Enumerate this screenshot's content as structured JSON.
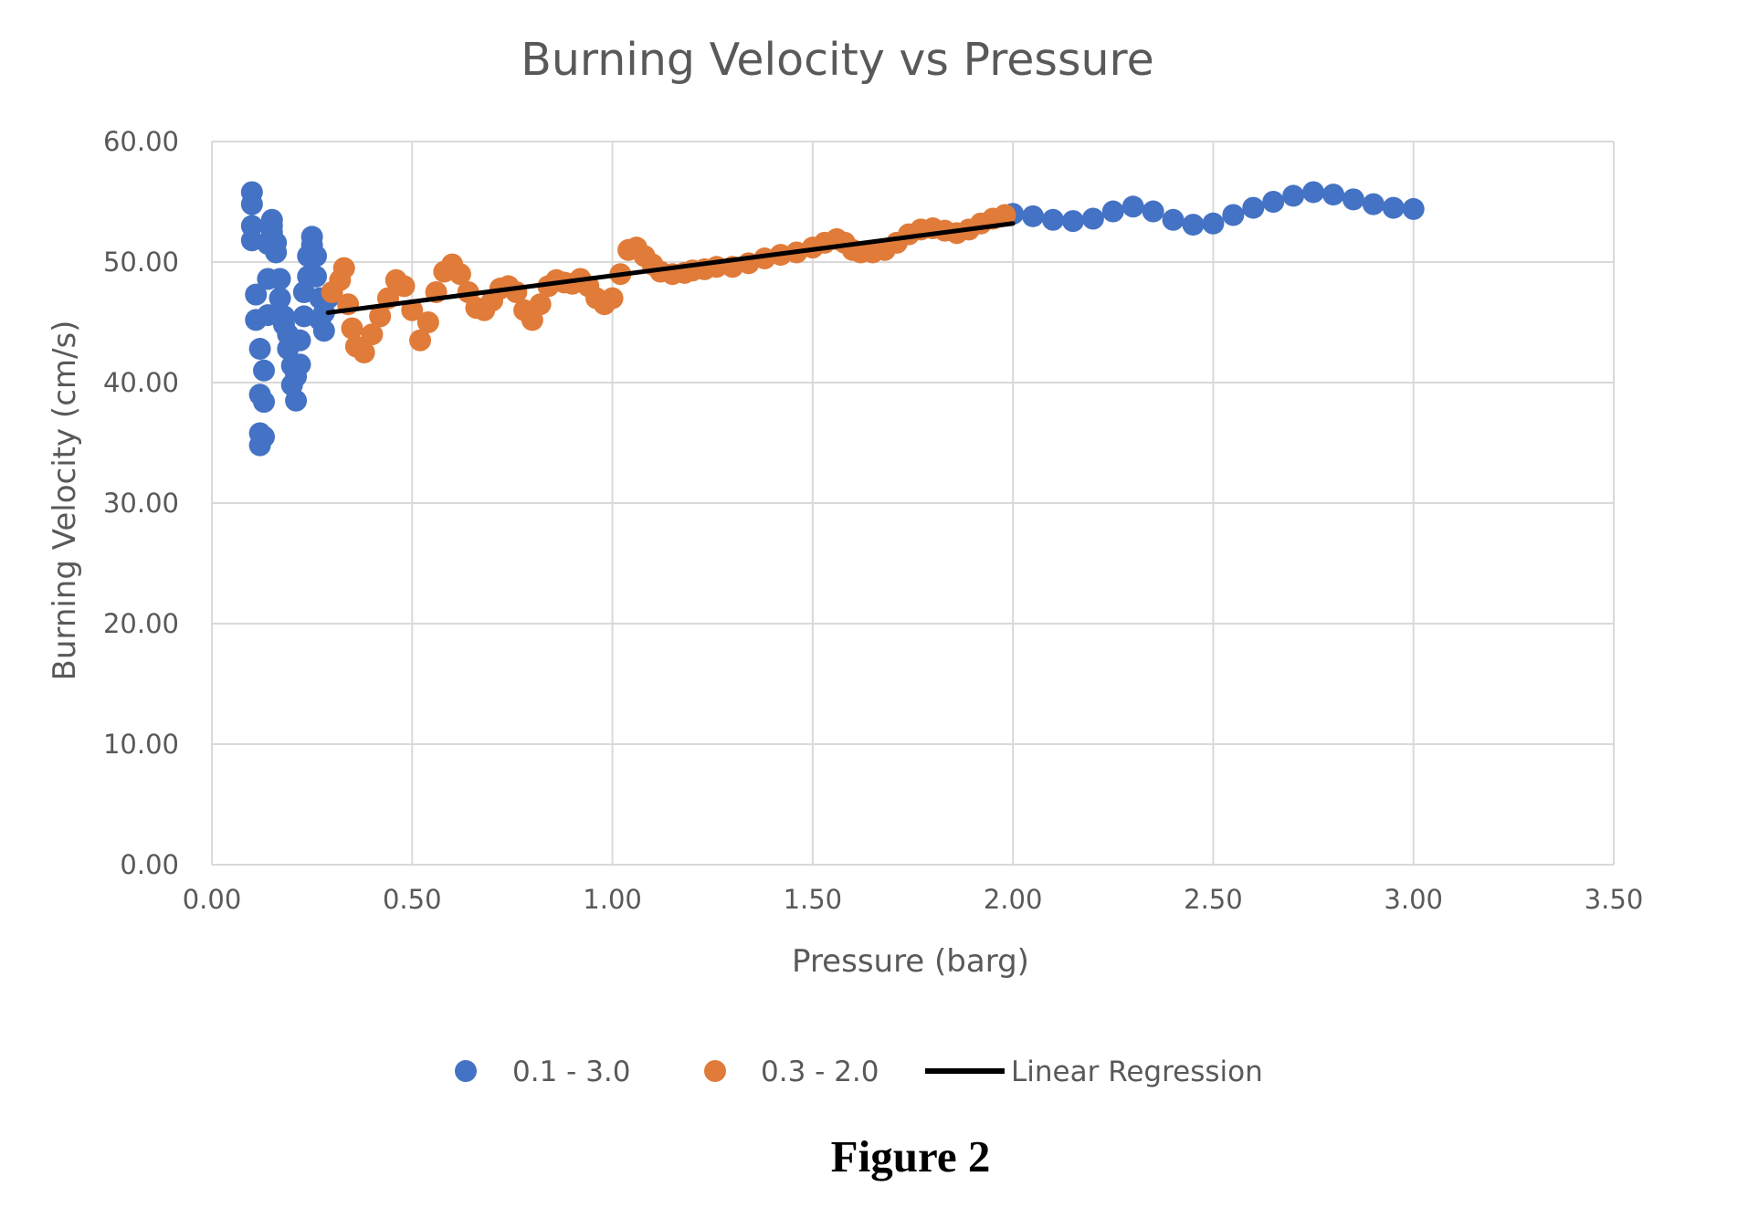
{
  "caption": "Figure 2",
  "colors": {
    "series_a": "#4472C4",
    "series_b": "#E07B39",
    "regression": "#000000",
    "gridline": "#d9d9d9",
    "text": "#595959"
  },
  "chart_data": {
    "type": "scatter",
    "title": "Burning Velocity vs Pressure",
    "xlabel": "Pressure (barg)",
    "ylabel": "Burning Velocity (cm/s)",
    "xlim": [
      0,
      3.5
    ],
    "ylim": [
      0,
      60
    ],
    "x_ticks": [
      "0.00",
      "0.50",
      "1.00",
      "1.50",
      "2.00",
      "2.50",
      "3.00",
      "3.50"
    ],
    "y_ticks": [
      "0.00",
      "10.00",
      "20.00",
      "30.00",
      "40.00",
      "50.00",
      "60.00"
    ],
    "grid": true,
    "legend_position": "bottom",
    "series": [
      {
        "name": "0.1 - 3.0",
        "kind": "scatter",
        "color": "#4472C4",
        "points": [
          [
            0.1,
            55.8
          ],
          [
            0.1,
            54.8
          ],
          [
            0.1,
            53.0
          ],
          [
            0.1,
            51.8
          ],
          [
            0.11,
            47.3
          ],
          [
            0.11,
            45.2
          ],
          [
            0.12,
            42.8
          ],
          [
            0.12,
            39.0
          ],
          [
            0.13,
            38.4
          ],
          [
            0.12,
            35.8
          ],
          [
            0.12,
            34.8
          ],
          [
            0.13,
            35.5
          ],
          [
            0.13,
            41.0
          ],
          [
            0.14,
            45.6
          ],
          [
            0.14,
            48.6
          ],
          [
            0.14,
            51.5
          ],
          [
            0.15,
            53.0
          ],
          [
            0.15,
            53.5
          ],
          [
            0.15,
            52.5
          ],
          [
            0.16,
            51.6
          ],
          [
            0.16,
            50.8
          ],
          [
            0.17,
            48.6
          ],
          [
            0.17,
            47.0
          ],
          [
            0.18,
            45.5
          ],
          [
            0.18,
            44.8
          ],
          [
            0.19,
            44.0
          ],
          [
            0.19,
            42.8
          ],
          [
            0.2,
            41.4
          ],
          [
            0.2,
            39.8
          ],
          [
            0.21,
            38.5
          ],
          [
            0.21,
            40.5
          ],
          [
            0.22,
            41.5
          ],
          [
            0.22,
            43.5
          ],
          [
            0.23,
            45.5
          ],
          [
            0.23,
            47.5
          ],
          [
            0.24,
            48.8
          ],
          [
            0.24,
            50.5
          ],
          [
            0.25,
            51.4
          ],
          [
            0.25,
            52.1
          ],
          [
            0.26,
            50.5
          ],
          [
            0.26,
            48.8
          ],
          [
            0.27,
            47.0
          ],
          [
            0.27,
            45.2
          ],
          [
            0.28,
            44.3
          ],
          [
            0.28,
            45.8
          ],
          [
            0.29,
            47.0
          ],
          [
            2.0,
            54.0
          ],
          [
            2.05,
            53.8
          ],
          [
            2.1,
            53.5
          ],
          [
            2.15,
            53.4
          ],
          [
            2.2,
            53.6
          ],
          [
            2.25,
            54.2
          ],
          [
            2.3,
            54.6
          ],
          [
            2.35,
            54.2
          ],
          [
            2.4,
            53.5
          ],
          [
            2.45,
            53.1
          ],
          [
            2.5,
            53.2
          ],
          [
            2.55,
            53.9
          ],
          [
            2.6,
            54.5
          ],
          [
            2.65,
            55.0
          ],
          [
            2.7,
            55.5
          ],
          [
            2.75,
            55.8
          ],
          [
            2.8,
            55.6
          ],
          [
            2.85,
            55.2
          ],
          [
            2.9,
            54.8
          ],
          [
            2.95,
            54.5
          ],
          [
            3.0,
            54.4
          ]
        ]
      },
      {
        "name": "0.3 - 2.0",
        "kind": "scatter",
        "color": "#E07B39",
        "points": [
          [
            0.3,
            47.5
          ],
          [
            0.32,
            48.5
          ],
          [
            0.33,
            49.5
          ],
          [
            0.34,
            46.5
          ],
          [
            0.35,
            44.5
          ],
          [
            0.36,
            43.0
          ],
          [
            0.38,
            42.5
          ],
          [
            0.4,
            44.0
          ],
          [
            0.42,
            45.5
          ],
          [
            0.44,
            47.0
          ],
          [
            0.46,
            48.5
          ],
          [
            0.48,
            48.0
          ],
          [
            0.5,
            46.0
          ],
          [
            0.52,
            43.5
          ],
          [
            0.54,
            45.0
          ],
          [
            0.56,
            47.5
          ],
          [
            0.58,
            49.2
          ],
          [
            0.6,
            49.8
          ],
          [
            0.62,
            49.0
          ],
          [
            0.64,
            47.5
          ],
          [
            0.66,
            46.2
          ],
          [
            0.68,
            46.0
          ],
          [
            0.7,
            46.8
          ],
          [
            0.72,
            47.8
          ],
          [
            0.74,
            48.0
          ],
          [
            0.76,
            47.5
          ],
          [
            0.78,
            46.0
          ],
          [
            0.8,
            45.2
          ],
          [
            0.82,
            46.5
          ],
          [
            0.84,
            48.0
          ],
          [
            0.86,
            48.5
          ],
          [
            0.88,
            48.3
          ],
          [
            0.9,
            48.2
          ],
          [
            0.92,
            48.6
          ],
          [
            0.94,
            48.0
          ],
          [
            0.96,
            47.0
          ],
          [
            0.98,
            46.5
          ],
          [
            1.0,
            47.0
          ],
          [
            1.02,
            49.0
          ],
          [
            1.04,
            51.0
          ],
          [
            1.06,
            51.2
          ],
          [
            1.08,
            50.5
          ],
          [
            1.1,
            49.8
          ],
          [
            1.12,
            49.2
          ],
          [
            1.15,
            49.0
          ],
          [
            1.18,
            49.1
          ],
          [
            1.2,
            49.3
          ],
          [
            1.23,
            49.4
          ],
          [
            1.26,
            49.6
          ],
          [
            1.3,
            49.6
          ],
          [
            1.34,
            49.9
          ],
          [
            1.38,
            50.3
          ],
          [
            1.42,
            50.6
          ],
          [
            1.46,
            50.8
          ],
          [
            1.5,
            51.2
          ],
          [
            1.53,
            51.6
          ],
          [
            1.56,
            51.9
          ],
          [
            1.58,
            51.6
          ],
          [
            1.6,
            51.0
          ],
          [
            1.62,
            50.8
          ],
          [
            1.65,
            50.8
          ],
          [
            1.68,
            51.0
          ],
          [
            1.71,
            51.6
          ],
          [
            1.74,
            52.3
          ],
          [
            1.77,
            52.7
          ],
          [
            1.8,
            52.8
          ],
          [
            1.83,
            52.6
          ],
          [
            1.86,
            52.4
          ],
          [
            1.89,
            52.7
          ],
          [
            1.92,
            53.2
          ],
          [
            1.95,
            53.6
          ],
          [
            1.98,
            53.9
          ]
        ]
      },
      {
        "name": "Linear Regression",
        "kind": "line",
        "color": "#000000",
        "points": [
          [
            0.29,
            45.8
          ],
          [
            2.0,
            53.2
          ]
        ]
      }
    ]
  }
}
